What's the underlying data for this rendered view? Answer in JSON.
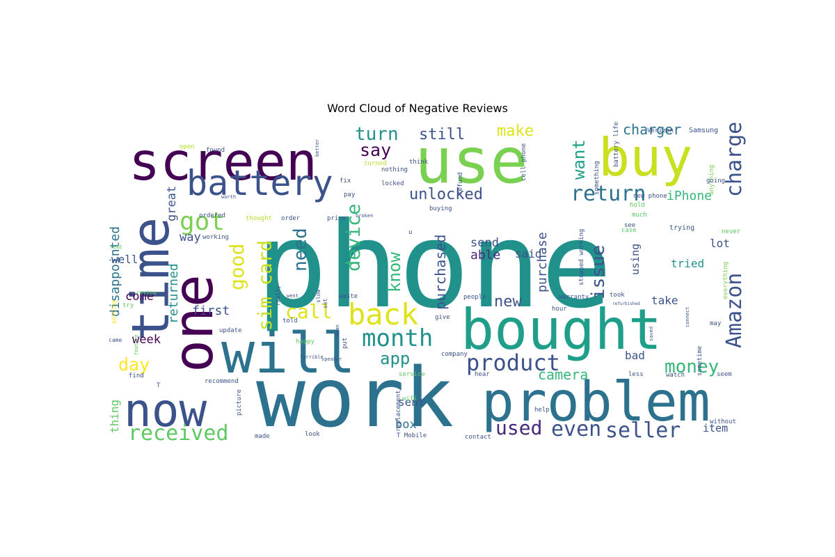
{
  "chart_data": {
    "type": "wordcloud",
    "title": "Word Cloud of Negative Reviews",
    "background": "#ffffff",
    "colormap": "viridis",
    "words": [
      {
        "text": "phone",
        "weight": 1.0,
        "color": "#21918c"
      },
      {
        "text": "work",
        "weight": 0.78,
        "color": "#2c728e"
      },
      {
        "text": "use",
        "weight": 0.62,
        "color": "#7ad151"
      },
      {
        "text": "bought",
        "weight": 0.6,
        "color": "#1f9e89"
      },
      {
        "text": "screen",
        "weight": 0.52,
        "color": "#440154"
      },
      {
        "text": "buy",
        "weight": 0.5,
        "color": "#c8e020"
      },
      {
        "text": "one",
        "weight": 0.48,
        "color": "#440154"
      },
      {
        "text": "time",
        "weight": 0.46,
        "color": "#3b528b"
      },
      {
        "text": "will",
        "weight": 0.45,
        "color": "#2c728e"
      },
      {
        "text": "problem",
        "weight": 0.44,
        "color": "#2c728e"
      },
      {
        "text": "now",
        "weight": 0.4,
        "color": "#3b528b"
      },
      {
        "text": "battery",
        "weight": 0.28,
        "color": "#3b528b"
      },
      {
        "text": "back",
        "weight": 0.27,
        "color": "#dde318"
      },
      {
        "text": "got",
        "weight": 0.24,
        "color": "#7ad151"
      },
      {
        "text": "month",
        "weight": 0.2,
        "color": "#21918c"
      },
      {
        "text": "product",
        "weight": 0.2,
        "color": "#3b528b"
      },
      {
        "text": "seller",
        "weight": 0.19,
        "color": "#3b528b"
      },
      {
        "text": "return",
        "weight": 0.18,
        "color": "#2c728e"
      },
      {
        "text": "received",
        "weight": 0.17,
        "color": "#5ec962"
      },
      {
        "text": "Amazon",
        "weight": 0.17,
        "color": "#3b528b"
      },
      {
        "text": "charge",
        "weight": 0.17,
        "color": "#3b528b"
      },
      {
        "text": "sim card",
        "weight": 0.16,
        "color": "#c8e020"
      },
      {
        "text": "call",
        "weight": 0.16,
        "color": "#dde318"
      },
      {
        "text": "device",
        "weight": 0.16,
        "color": "#35b779"
      },
      {
        "text": "good",
        "weight": 0.16,
        "color": "#dde318"
      },
      {
        "text": "money",
        "weight": 0.15,
        "color": "#35b779"
      },
      {
        "text": "even",
        "weight": 0.15,
        "color": "#3b528b"
      },
      {
        "text": "need",
        "weight": 0.14,
        "color": "#2c728e"
      },
      {
        "text": "issue",
        "weight": 0.14,
        "color": "#3b528b"
      },
      {
        "text": "day",
        "weight": 0.14,
        "color": "#fde725"
      },
      {
        "text": "turn",
        "weight": 0.13,
        "color": "#21918c"
      },
      {
        "text": "say",
        "weight": 0.13,
        "color": "#440154"
      },
      {
        "text": "used",
        "weight": 0.13,
        "color": "#482878"
      },
      {
        "text": "want",
        "weight": 0.13,
        "color": "#1f9e89"
      },
      {
        "text": "unlocked",
        "weight": 0.12,
        "color": "#3b528b"
      },
      {
        "text": "know",
        "weight": 0.12,
        "color": "#35b779"
      },
      {
        "text": "app",
        "weight": 0.12,
        "color": "#21918c"
      },
      {
        "text": "still",
        "weight": 0.12,
        "color": "#3b528b"
      },
      {
        "text": "make",
        "weight": 0.11,
        "color": "#dde318"
      },
      {
        "text": "new",
        "weight": 0.11,
        "color": "#3b528b"
      },
      {
        "text": "camera",
        "weight": 0.1,
        "color": "#35b779"
      },
      {
        "text": "charger",
        "weight": 0.1,
        "color": "#2c728e"
      },
      {
        "text": "iPhone",
        "weight": 0.09,
        "color": "#35b779"
      },
      {
        "text": "purchased",
        "weight": 0.09,
        "color": "#3b528b"
      },
      {
        "text": "purchase",
        "weight": 0.09,
        "color": "#3b528b"
      },
      {
        "text": "disappointed",
        "weight": 0.09,
        "color": "#2c728e"
      },
      {
        "text": "returned",
        "weight": 0.09,
        "color": "#21918c"
      },
      {
        "text": "first",
        "weight": 0.09,
        "color": "#3b528b"
      },
      {
        "text": "able",
        "weight": 0.09,
        "color": "#482878"
      },
      {
        "text": "send",
        "weight": 0.08,
        "color": "#3b528b"
      },
      {
        "text": "said",
        "weight": 0.08,
        "color": "#3b528b"
      },
      {
        "text": "way",
        "weight": 0.08,
        "color": "#3b528b"
      },
      {
        "text": "well",
        "weight": 0.08,
        "color": "#3b528b"
      },
      {
        "text": "come",
        "weight": 0.08,
        "color": "#440154"
      },
      {
        "text": "week",
        "weight": 0.08,
        "color": "#440154"
      },
      {
        "text": "box",
        "weight": 0.08,
        "color": "#2c728e"
      },
      {
        "text": "sent",
        "weight": 0.08,
        "color": "#3b528b"
      },
      {
        "text": "thing",
        "weight": 0.08,
        "color": "#5ec962"
      },
      {
        "text": "great",
        "weight": 0.08,
        "color": "#3b528b"
      },
      {
        "text": "item",
        "weight": 0.08,
        "color": "#3b528b"
      },
      {
        "text": "lot",
        "weight": 0.08,
        "color": "#3b528b"
      },
      {
        "text": "tried",
        "weight": 0.08,
        "color": "#21918c"
      },
      {
        "text": "take",
        "weight": 0.08,
        "color": "#3b528b"
      },
      {
        "text": "bad",
        "weight": 0.07,
        "color": "#3b528b"
      },
      {
        "text": "using",
        "weight": 0.07,
        "color": "#3b528b"
      },
      {
        "text": "Samsung",
        "weight": 0.04,
        "color": "#3b528b"
      },
      {
        "text": "Verizon",
        "weight": 0.04,
        "color": "#3b528b"
      },
      {
        "text": "battery life",
        "weight": 0.03,
        "color": "#3b528b"
      },
      {
        "text": "stopped working",
        "weight": 0.03,
        "color": "#3b528b"
      },
      {
        "text": "replacement",
        "weight": 0.03,
        "color": "#3b528b"
      },
      {
        "text": "cell phone",
        "weight": 0.03,
        "color": "#3b528b"
      },
      {
        "text": "new phone",
        "weight": 0.03,
        "color": "#3b528b"
      },
      {
        "text": "T Mobile",
        "weight": 0.03,
        "color": "#3b528b"
      },
      {
        "text": "something",
        "weight": 0.03,
        "color": "#3b528b"
      },
      {
        "text": "everything",
        "weight": 0.03,
        "color": "#7ad151"
      },
      {
        "text": "anything",
        "weight": 0.03,
        "color": "#7ad151"
      },
      {
        "text": "sometime",
        "weight": 0.03,
        "color": "#3b528b"
      },
      {
        "text": "trying",
        "weight": 0.03,
        "color": "#3b528b"
      },
      {
        "text": "working",
        "weight": 0.03,
        "color": "#3b528b"
      },
      {
        "text": "ordered",
        "weight": 0.03,
        "color": "#3b528b"
      },
      {
        "text": "thought",
        "weight": 0.03,
        "color": "#b5de2b"
      },
      {
        "text": "order",
        "weight": 0.03,
        "color": "#3b528b"
      },
      {
        "text": "price",
        "weight": 0.03,
        "color": "#3b528b"
      },
      {
        "text": "buying",
        "weight": 0.03,
        "color": "#3b528b"
      },
      {
        "text": "refund",
        "weight": 0.03,
        "color": "#3b528b"
      },
      {
        "text": "turned",
        "weight": 0.03,
        "color": "#b5de2b"
      },
      {
        "text": "nothing",
        "weight": 0.03,
        "color": "#3b528b"
      },
      {
        "text": "locked",
        "weight": 0.03,
        "color": "#3b528b"
      },
      {
        "text": "found",
        "weight": 0.03,
        "color": "#3b528b"
      },
      {
        "text": "open",
        "weight": 0.03,
        "color": "#b5de2b"
      },
      {
        "text": "think",
        "weight": 0.03,
        "color": "#3b528b"
      },
      {
        "text": "fix",
        "weight": 0.03,
        "color": "#3b528b"
      },
      {
        "text": "pay",
        "weight": 0.03,
        "color": "#3b528b"
      },
      {
        "text": "hour",
        "weight": 0.03,
        "color": "#3b528b"
      },
      {
        "text": "hold",
        "weight": 0.03,
        "color": "#5ec962"
      },
      {
        "text": "much",
        "weight": 0.03,
        "color": "#5ec962"
      },
      {
        "text": "see",
        "weight": 0.03,
        "color": "#3b528b"
      },
      {
        "text": "never",
        "weight": 0.03,
        "color": "#5ec962"
      },
      {
        "text": "going",
        "weight": 0.03,
        "color": "#3b528b"
      },
      {
        "text": "case",
        "weight": 0.03,
        "color": "#5ec962"
      },
      {
        "text": "took",
        "weight": 0.03,
        "color": "#3b528b"
      },
      {
        "text": "warranty",
        "weight": 0.03,
        "color": "#3b528b"
      },
      {
        "text": "people",
        "weight": 0.03,
        "color": "#3b528b"
      },
      {
        "text": "give",
        "weight": 0.03,
        "color": "#3b528b"
      },
      {
        "text": "company",
        "weight": 0.03,
        "color": "#3b528b"
      },
      {
        "text": "service",
        "weight": 0.03,
        "color": "#5ec962"
      },
      {
        "text": "hear",
        "weight": 0.03,
        "color": "#3b528b"
      },
      {
        "text": "less",
        "weight": 0.03,
        "color": "#3b528b"
      },
      {
        "text": "seem",
        "weight": 0.03,
        "color": "#3b528b"
      },
      {
        "text": "watch",
        "weight": 0.03,
        "color": "#3b528b"
      },
      {
        "text": "help",
        "weight": 0.03,
        "color": "#3b528b"
      },
      {
        "text": "wifi",
        "weight": 0.03,
        "color": "#5ec962"
      },
      {
        "text": "contact",
        "weight": 0.03,
        "color": "#3b528b"
      },
      {
        "text": "without",
        "weight": 0.03,
        "color": "#3b528b"
      },
      {
        "text": "update",
        "weight": 0.03,
        "color": "#3b528b"
      },
      {
        "text": "happy",
        "weight": 0.03,
        "color": "#5ec962"
      },
      {
        "text": "recommend",
        "weight": 0.03,
        "color": "#3b528b"
      },
      {
        "text": "picture",
        "weight": 0.03,
        "color": "#3b528b"
      },
      {
        "text": "made",
        "weight": 0.03,
        "color": "#3b528b"
      },
      {
        "text": "look",
        "weight": 0.03,
        "color": "#3b528b"
      },
      {
        "text": "told",
        "weight": 0.03,
        "color": "#3b528b"
      },
      {
        "text": "waste",
        "weight": 0.03,
        "color": "#3b528b"
      },
      {
        "text": "try",
        "weight": 0.03,
        "color": "#5ec962"
      },
      {
        "text": "find",
        "weight": 0.03,
        "color": "#3b528b"
      },
      {
        "text": "came",
        "weight": 0.03,
        "color": "#3b528b"
      },
      {
        "text": "review",
        "weight": 0.03,
        "color": "#5ec962"
      },
      {
        "text": "getting",
        "weight": 0.03,
        "color": "#fde725"
      },
      {
        "text": "may",
        "weight": 0.03,
        "color": "#3b528b"
      },
      {
        "text": "really",
        "weight": 0.03,
        "color": "#3b528b"
      },
      {
        "text": "put",
        "weight": 0.03,
        "color": "#3b528b"
      },
      {
        "text": "set",
        "weight": 0.03,
        "color": "#3b528b"
      },
      {
        "text": "slow",
        "weight": 0.03,
        "color": "#3b528b"
      },
      {
        "text": "u",
        "weight": 0.03,
        "color": "#3b528b"
      },
      {
        "text": "T",
        "weight": 0.03,
        "color": "#3b528b"
      },
      {
        "text": "read",
        "weight": 0.02,
        "color": "#5ec962"
      },
      {
        "text": "feature",
        "weight": 0.02,
        "color": "#5ec962"
      },
      {
        "text": "connect",
        "weight": 0.02,
        "color": "#3b528b"
      },
      {
        "text": "speaker",
        "weight": 0.02,
        "color": "#3b528b"
      },
      {
        "text": "terrible",
        "weight": 0.02,
        "color": "#3b528b"
      },
      {
        "text": "broken",
        "weight": 0.02,
        "color": "#3b528b"
      },
      {
        "text": "worth",
        "weight": 0.02,
        "color": "#3b528b"
      },
      {
        "text": "better",
        "weight": 0.02,
        "color": "#3b528b"
      },
      {
        "text": "went",
        "weight": 0.02,
        "color": "#3b528b"
      },
      {
        "text": "mean",
        "weight": 0.02,
        "color": "#3b528b"
      },
      {
        "text": "saved",
        "weight": 0.02,
        "color": "#3b528b"
      },
      {
        "text": "refurbished",
        "weight": 0.02,
        "color": "#3b528b"
      }
    ]
  }
}
